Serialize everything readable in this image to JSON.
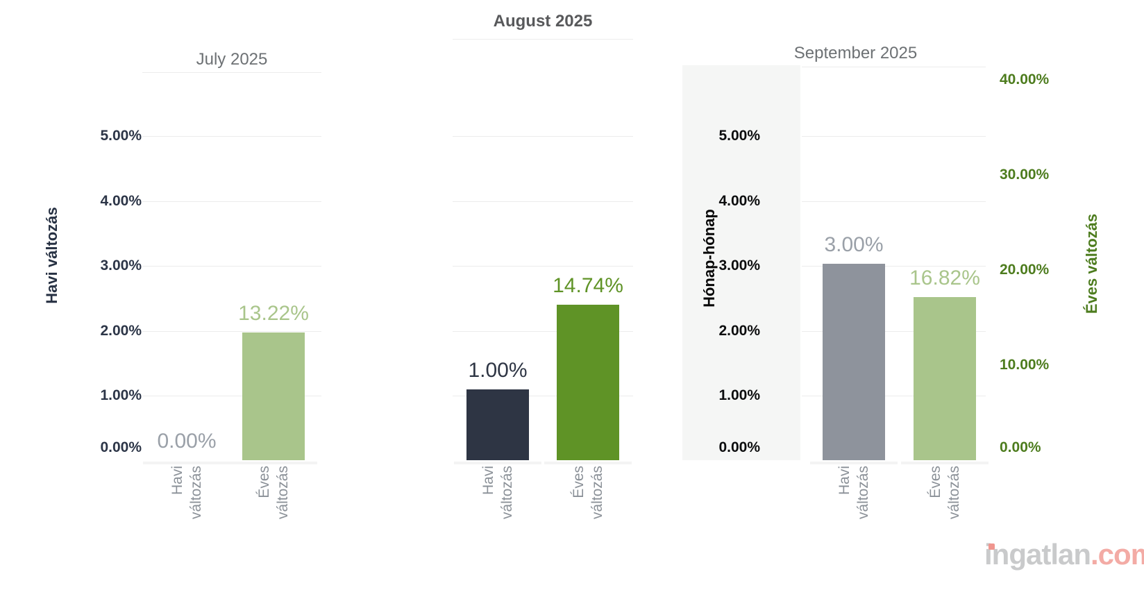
{
  "chart_data": {
    "type": "bar",
    "facets": [
      "July 2025",
      "August 2025",
      "September 2025"
    ],
    "categories": [
      "Havi változás",
      "Éves változás"
    ],
    "series": [
      {
        "name": "Havi változás",
        "axis": "left",
        "values": [
          0.0,
          1.0,
          3.0
        ]
      },
      {
        "name": "Éves változás",
        "axis": "right",
        "values": [
          13.22,
          14.74,
          16.82
        ]
      }
    ],
    "data_labels": [
      [
        "0.00%",
        "13.22%"
      ],
      [
        "1.00%",
        "14.74%"
      ],
      [
        "3.00%",
        "16.82%"
      ]
    ],
    "left_axis": {
      "label": "Havi változás",
      "range": [
        0,
        5
      ],
      "tick_step": 1,
      "tick_format": "0.00%"
    },
    "right_axis": {
      "label": "Éves változás",
      "range": [
        0,
        40
      ],
      "tick_step": 10,
      "tick_format": "0.00%"
    },
    "annotations": [
      "Hónap-hónap"
    ],
    "grid": true,
    "highlighted_facet": "August 2025"
  },
  "months": [
    {
      "title": "July 2025",
      "bars": [
        {
          "category": "Havi változás",
          "label": "0.00%",
          "value": 0.0,
          "color": null,
          "label_color": "muted_gray"
        },
        {
          "category": "Éves változás",
          "label": "13.22%",
          "value": 13.22,
          "color": "pale_green",
          "label_color": "pale_green"
        }
      ]
    },
    {
      "title": "August 2025",
      "bars": [
        {
          "category": "Havi változás",
          "label": "1.00%",
          "value": 1.0,
          "color": "navy",
          "label_color": "navy"
        },
        {
          "category": "Éves változás",
          "label": "14.74%",
          "value": 14.74,
          "color": "green",
          "label_color": "green"
        }
      ]
    },
    {
      "title": "September 2025",
      "bars": [
        {
          "category": "Havi változás",
          "label": "3.00%",
          "value": 3.0,
          "color": "bar_gray",
          "label_color": "muted_gray"
        },
        {
          "category": "Éves változás",
          "label": "16.82%",
          "value": 16.82,
          "color": "pale_green",
          "label_color": "pale_green"
        }
      ]
    }
  ],
  "left_axis": {
    "title": "Havi változás",
    "ticks": [
      "5.00%",
      "4.00%",
      "3.00%",
      "2.00%",
      "1.00%",
      "0.00%"
    ]
  },
  "right_axis": {
    "title": "Éves változás",
    "ticks": [
      "40.00%",
      "30.00%",
      "20.00%",
      "10.00%",
      "0.00%"
    ]
  },
  "band_label": "Hónap-hónap",
  "watermark": {
    "name": "ingatlan",
    "tld": ".com"
  },
  "colors": {
    "navy": "#2e3544",
    "green": "#5f9326",
    "pale_green": "#a9c58b",
    "bar_gray": "#8e939c",
    "muted_gray": "#9aa0a8",
    "tick_navy": "#2c3547",
    "tick_black": "#0c0d0e",
    "axis_green": "#4d7c1e",
    "title_gray": "#6d7174",
    "title_dark": "#58595b",
    "category_gray": "#8a9097",
    "gridline": "#ececec",
    "band": "#f5f6f5",
    "watermark_gray": "#c9cacb",
    "watermark_red": "#f3aba5"
  }
}
